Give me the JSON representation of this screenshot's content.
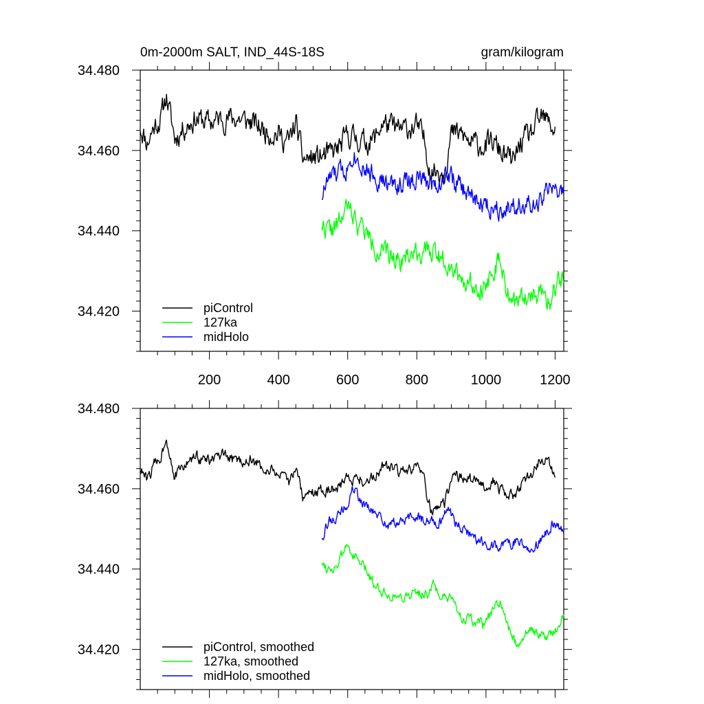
{
  "chart_data": [
    {
      "type": "line",
      "title": "0m-2000m SALT, IND_44S-18S",
      "units": "gram/kilogram",
      "xlim": [
        0,
        1225
      ],
      "ylim": [
        34.41,
        34.48
      ],
      "x_ticks": [
        200,
        400,
        600,
        800,
        1000,
        1200
      ],
      "x_tick_labels": [
        "200",
        "400",
        "600",
        "800",
        "1000",
        "1200"
      ],
      "y_ticks": [
        34.48,
        34.46,
        34.44,
        34.42
      ],
      "y_tick_labels": [
        "34.480",
        "34.460",
        "34.440",
        "34.420"
      ],
      "legend_position": "bottom-left",
      "series": [
        {
          "name": "piControl",
          "color": "#000000",
          "start": 0,
          "end": 1200,
          "anchors": [
            [
              0,
              34.466
            ],
            [
              20,
              34.462
            ],
            [
              40,
              34.466
            ],
            [
              60,
              34.468
            ],
            [
              75,
              34.474
            ],
            [
              100,
              34.463
            ],
            [
              130,
              34.466
            ],
            [
              160,
              34.468
            ],
            [
              200,
              34.467
            ],
            [
              240,
              34.468
            ],
            [
              280,
              34.468
            ],
            [
              320,
              34.467
            ],
            [
              360,
              34.465
            ],
            [
              400,
              34.464
            ],
            [
              430,
              34.462
            ],
            [
              450,
              34.467
            ],
            [
              470,
              34.458
            ],
            [
              500,
              34.458
            ],
            [
              550,
              34.459
            ],
            [
              580,
              34.461
            ],
            [
              600,
              34.464
            ],
            [
              650,
              34.462
            ],
            [
              680,
              34.463
            ],
            [
              700,
              34.467
            ],
            [
              750,
              34.465
            ],
            [
              800,
              34.466
            ],
            [
              820,
              34.463
            ],
            [
              840,
              34.455
            ],
            [
              860,
              34.455
            ],
            [
              880,
              34.455
            ],
            [
              900,
              34.464
            ],
            [
              930,
              34.464
            ],
            [
              950,
              34.462
            ],
            [
              1000,
              34.461
            ],
            [
              1020,
              34.462
            ],
            [
              1050,
              34.459
            ],
            [
              1080,
              34.457
            ],
            [
              1100,
              34.462
            ],
            [
              1130,
              34.464
            ],
            [
              1160,
              34.468
            ],
            [
              1180,
              34.467
            ],
            [
              1200,
              34.465
            ]
          ],
          "noise": 0.0024,
          "seed": 11
        },
        {
          "name": "127ka",
          "color": "#00ff00",
          "start": 525,
          "end": 1225,
          "anchors": [
            [
              525,
              34.442
            ],
            [
              545,
              34.44
            ],
            [
              570,
              34.441
            ],
            [
              600,
              34.446
            ],
            [
              620,
              34.443
            ],
            [
              650,
              34.44
            ],
            [
              680,
              34.436
            ],
            [
              710,
              34.434
            ],
            [
              750,
              34.433
            ],
            [
              800,
              34.435
            ],
            [
              830,
              34.434
            ],
            [
              850,
              34.436
            ],
            [
              870,
              34.433
            ],
            [
              900,
              34.432
            ],
            [
              930,
              34.428
            ],
            [
              960,
              34.427
            ],
            [
              1000,
              34.426
            ],
            [
              1020,
              34.431
            ],
            [
              1040,
              34.432
            ],
            [
              1060,
              34.425
            ],
            [
              1090,
              34.421
            ],
            [
              1120,
              34.425
            ],
            [
              1150,
              34.424
            ],
            [
              1180,
              34.422
            ],
            [
              1200,
              34.425
            ],
            [
              1225,
              34.43
            ]
          ],
          "noise": 0.0022,
          "seed": 22
        },
        {
          "name": "midHolo",
          "color": "#0000ff",
          "start": 525,
          "end": 1225,
          "anchors": [
            [
              525,
              34.449
            ],
            [
              545,
              34.453
            ],
            [
              570,
              34.454
            ],
            [
              600,
              34.456
            ],
            [
              615,
              34.46
            ],
            [
              630,
              34.458
            ],
            [
              660,
              34.455
            ],
            [
              690,
              34.453
            ],
            [
              720,
              34.451
            ],
            [
              760,
              34.452
            ],
            [
              800,
              34.453
            ],
            [
              830,
              34.452
            ],
            [
              870,
              34.452
            ],
            [
              890,
              34.455
            ],
            [
              910,
              34.452
            ],
            [
              950,
              34.449
            ],
            [
              1000,
              34.446
            ],
            [
              1050,
              34.446
            ],
            [
              1100,
              34.447
            ],
            [
              1140,
              34.445
            ],
            [
              1160,
              34.448
            ],
            [
              1190,
              34.451
            ],
            [
              1225,
              34.449
            ]
          ],
          "noise": 0.0022,
          "seed": 33
        }
      ]
    },
    {
      "type": "line",
      "title": "",
      "xlim": [
        0,
        1225
      ],
      "ylim": [
        34.41,
        34.48
      ],
      "y_ticks": [
        34.48,
        34.46,
        34.44,
        34.42
      ],
      "y_tick_labels": [
        "34.480",
        "34.460",
        "34.440",
        "34.420"
      ],
      "legend_position": "bottom-left",
      "series": [
        {
          "name": "piControl, smoothed",
          "color": "#000000",
          "start": 0,
          "end": 1200,
          "anchors": [
            [
              0,
              34.465
            ],
            [
              20,
              34.462
            ],
            [
              40,
              34.466
            ],
            [
              60,
              34.468
            ],
            [
              75,
              34.473
            ],
            [
              100,
              34.463
            ],
            [
              130,
              34.466
            ],
            [
              160,
              34.468
            ],
            [
              200,
              34.467
            ],
            [
              240,
              34.468
            ],
            [
              280,
              34.467
            ],
            [
              320,
              34.467
            ],
            [
              360,
              34.465
            ],
            [
              400,
              34.464
            ],
            [
              430,
              34.461
            ],
            [
              450,
              34.466
            ],
            [
              470,
              34.458
            ],
            [
              500,
              34.459
            ],
            [
              550,
              34.46
            ],
            [
              580,
              34.461
            ],
            [
              600,
              34.463
            ],
            [
              650,
              34.462
            ],
            [
              680,
              34.463
            ],
            [
              700,
              34.466
            ],
            [
              750,
              34.464
            ],
            [
              800,
              34.465
            ],
            [
              820,
              34.462
            ],
            [
              840,
              34.455
            ],
            [
              860,
              34.456
            ],
            [
              880,
              34.456
            ],
            [
              900,
              34.463
            ],
            [
              930,
              34.463
            ],
            [
              950,
              34.462
            ],
            [
              1000,
              34.461
            ],
            [
              1020,
              34.462
            ],
            [
              1050,
              34.459
            ],
            [
              1080,
              34.458
            ],
            [
              1100,
              34.461
            ],
            [
              1130,
              34.463
            ],
            [
              1160,
              34.468
            ],
            [
              1180,
              34.466
            ],
            [
              1200,
              34.464
            ]
          ],
          "noise": 0.0012,
          "seed": 44
        },
        {
          "name": "127ka, smoothed",
          "color": "#00ff00",
          "start": 525,
          "end": 1225,
          "anchors": [
            [
              525,
              34.442
            ],
            [
              545,
              34.44
            ],
            [
              570,
              34.441
            ],
            [
              600,
              34.446
            ],
            [
              620,
              34.443
            ],
            [
              650,
              34.44
            ],
            [
              680,
              34.436
            ],
            [
              710,
              34.434
            ],
            [
              750,
              34.433
            ],
            [
              800,
              34.434
            ],
            [
              830,
              34.434
            ],
            [
              850,
              34.436
            ],
            [
              870,
              34.433
            ],
            [
              900,
              34.432
            ],
            [
              930,
              34.428
            ],
            [
              960,
              34.427
            ],
            [
              1000,
              34.426
            ],
            [
              1020,
              34.43
            ],
            [
              1040,
              34.432
            ],
            [
              1060,
              34.426
            ],
            [
              1090,
              34.421
            ],
            [
              1120,
              34.425
            ],
            [
              1150,
              34.424
            ],
            [
              1180,
              34.423
            ],
            [
              1200,
              34.425
            ],
            [
              1225,
              34.429
            ]
          ],
          "noise": 0.0011,
          "seed": 55
        },
        {
          "name": "midHolo, smoothed",
          "color": "#0000ff",
          "start": 525,
          "end": 1225,
          "anchors": [
            [
              525,
              34.448
            ],
            [
              545,
              34.452
            ],
            [
              570,
              34.453
            ],
            [
              600,
              34.456
            ],
            [
              615,
              34.46
            ],
            [
              630,
              34.458
            ],
            [
              660,
              34.455
            ],
            [
              690,
              34.453
            ],
            [
              720,
              34.451
            ],
            [
              760,
              34.452
            ],
            [
              800,
              34.453
            ],
            [
              830,
              34.452
            ],
            [
              870,
              34.452
            ],
            [
              890,
              34.455
            ],
            [
              910,
              34.452
            ],
            [
              950,
              34.449
            ],
            [
              1000,
              34.446
            ],
            [
              1050,
              34.446
            ],
            [
              1100,
              34.447
            ],
            [
              1140,
              34.445
            ],
            [
              1160,
              34.447
            ],
            [
              1190,
              34.451
            ],
            [
              1225,
              34.449
            ]
          ],
          "noise": 0.0011,
          "seed": 66
        }
      ]
    }
  ]
}
